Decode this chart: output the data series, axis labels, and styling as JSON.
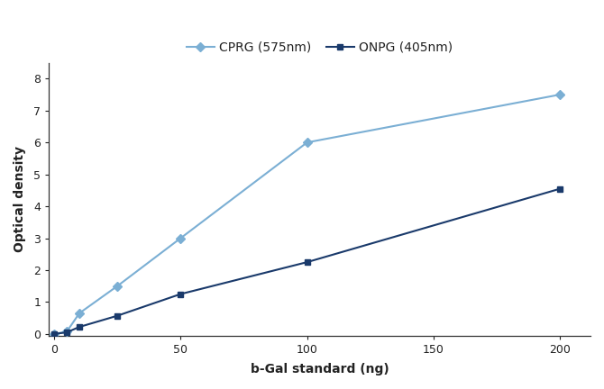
{
  "cprg_x": [
    0,
    5,
    10,
    25,
    50,
    100,
    200
  ],
  "cprg_y": [
    0.0,
    0.07,
    0.65,
    1.5,
    3.0,
    6.0,
    7.5
  ],
  "onpg_x": [
    0,
    5,
    10,
    25,
    50,
    100,
    200
  ],
  "onpg_y": [
    0.0,
    0.05,
    0.22,
    0.57,
    1.25,
    2.25,
    4.55
  ],
  "cprg_color": "#7bafd4",
  "onpg_color": "#1a3a6b",
  "xlabel": "b-Gal standard (ng)",
  "ylabel": "Optical density",
  "cprg_label": "CPRG (575nm)",
  "onpg_label": "ONPG (405nm)",
  "ylim": [
    -0.05,
    8.5
  ],
  "xlim": [
    -2,
    212
  ],
  "yticks": [
    0,
    1,
    2,
    3,
    4,
    5,
    6,
    7,
    8
  ],
  "xticks": [
    0,
    50,
    100,
    150,
    200
  ],
  "label_fontsize": 10,
  "tick_fontsize": 9,
  "legend_fontsize": 10
}
